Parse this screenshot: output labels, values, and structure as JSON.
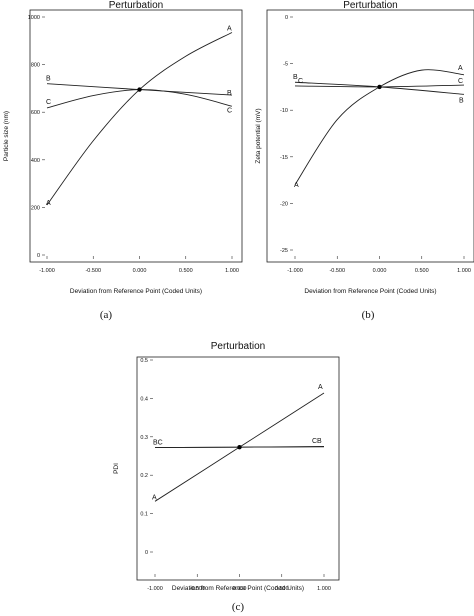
{
  "chart_data": [
    {
      "type": "line",
      "title": "Perturbation",
      "caption": "(a)",
      "xlabel": "Deviation from Reference Point (Coded Units)",
      "ylabel": "Particle size (nm)",
      "xlim": [
        -1,
        1
      ],
      "ylim": [
        0,
        1000
      ],
      "xticks": [
        "-1.000",
        "-0.500",
        "0.000",
        "0.500",
        "1.000"
      ],
      "yticks": [
        "0",
        "200",
        "400",
        "600",
        "800",
        "1000"
      ],
      "reference_point": [
        0,
        695
      ],
      "series": [
        {
          "name": "A",
          "x": [
            -1,
            -0.5,
            0,
            0.5,
            1
          ],
          "y": [
            210,
            480,
            695,
            835,
            935
          ]
        },
        {
          "name": "B",
          "x": [
            -1,
            0,
            1
          ],
          "y": [
            720,
            695,
            672
          ]
        },
        {
          "name": "C",
          "x": [
            -1,
            -0.5,
            0,
            0.5,
            1
          ],
          "y": [
            618,
            670,
            695,
            675,
            625
          ]
        }
      ]
    },
    {
      "type": "line",
      "title": "Perturbation",
      "caption": "(b)",
      "xlabel": "Deviation from Reference Point (Coded Units)",
      "ylabel": "Zeta potential (mV)",
      "xlim": [
        -1,
        1
      ],
      "ylim": [
        -25,
        0
      ],
      "xticks": [
        "-1.000",
        "-0.500",
        "0.000",
        "0.500",
        "1.000"
      ],
      "yticks": [
        "-25",
        "-20",
        "-15",
        "-10",
        "-5",
        "0"
      ],
      "reference_point": [
        0,
        -7.5
      ],
      "series": [
        {
          "name": "A",
          "x": [
            -1,
            -0.5,
            0,
            0.5,
            1
          ],
          "y": [
            -18,
            -11,
            -7.5,
            -5.7,
            -6.2
          ]
        },
        {
          "name": "B",
          "x": [
            -1,
            0,
            1
          ],
          "y": [
            -7.0,
            -7.5,
            -8.3
          ]
        },
        {
          "name": "C",
          "x": [
            -1,
            0,
            1
          ],
          "y": [
            -7.4,
            -7.5,
            -7.3
          ]
        }
      ]
    },
    {
      "type": "line",
      "title": "Perturbation",
      "caption": "(c)",
      "xlabel": "Deviation from Reference Point (Coded Units)",
      "ylabel": "PDI",
      "xlim": [
        -1,
        1
      ],
      "ylim": [
        0,
        0.5
      ],
      "xticks": [
        "-1.000",
        "-0.500",
        "0.000",
        "0.500",
        "1.000"
      ],
      "yticks": [
        "0",
        "0.1",
        "0.2",
        "0.3",
        "0.4",
        "0.5"
      ],
      "reference_point": [
        0,
        0.273
      ],
      "series": [
        {
          "name": "A",
          "x": [
            -1,
            0,
            1
          ],
          "y": [
            0.132,
            0.273,
            0.414
          ]
        },
        {
          "name": "B",
          "x": [
            -1,
            0,
            1
          ],
          "y": [
            0.272,
            0.273,
            0.274
          ]
        },
        {
          "name": "C",
          "x": [
            -1,
            0,
            1
          ],
          "y": [
            0.272,
            0.273,
            0.275
          ]
        }
      ],
      "end_labels": {
        "left": "BC",
        "right": "CB"
      }
    }
  ]
}
